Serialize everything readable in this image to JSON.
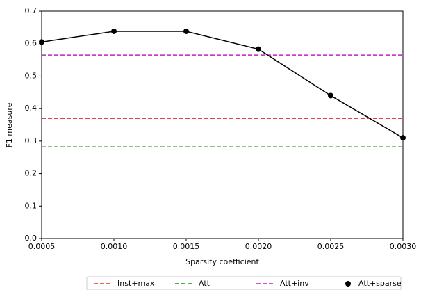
{
  "chart_data": {
    "type": "line",
    "x_label": "Sparsity coefficient",
    "y_label": "F1 measure",
    "x": [
      0.0005,
      0.001,
      0.0015,
      0.002,
      0.0025,
      0.003
    ],
    "series": [
      {
        "name": "Att+sparse",
        "color": "#000000",
        "values": [
          0.605,
          0.638,
          0.638,
          0.583,
          0.44,
          0.31
        ]
      }
    ],
    "reference_lines": [
      {
        "name": "Inst+max",
        "color": "#e8281f",
        "value": 0.37
      },
      {
        "name": "Att",
        "color": "#1f8c1f",
        "value": 0.282
      },
      {
        "name": "Att+inv",
        "color": "#c41fc4",
        "value": 0.565
      }
    ],
    "xlim": [
      0.0005,
      0.003
    ],
    "xticks": [
      0.0005,
      {
        "value": 0.001,
        "label": "0.0010"
      },
      0.0015,
      {
        "value": 0.002,
        "label": "0.0020"
      },
      0.0025,
      {
        "value": 0.003,
        "label": "0.0030"
      }
    ],
    "ylim": [
      0,
      0.7
    ],
    "yticks": [
      {
        "value": 0,
        "label": "0.0"
      },
      0.1,
      0.2,
      0.3,
      0.4,
      0.5,
      0.6,
      0.7
    ],
    "legend": "bottom"
  }
}
